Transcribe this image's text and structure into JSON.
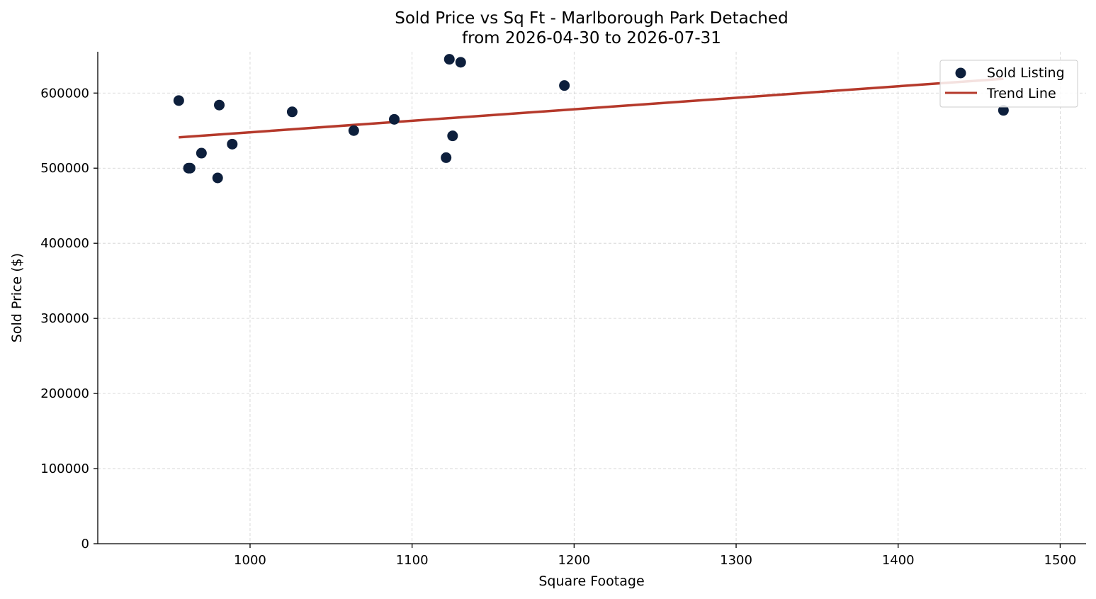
{
  "chart_data": {
    "type": "scatter",
    "title": "Sold Price vs Sq Ft - Marlborough Park Detached",
    "subtitle": "from 2026-04-30 to 2026-07-31",
    "xlabel": "Square Footage",
    "ylabel": "Sold Price ($)",
    "xlim": [
      906,
      1516
    ],
    "ylim": [
      0,
      655000
    ],
    "xticks": [
      1000,
      1100,
      1200,
      1300,
      1400,
      1500
    ],
    "yticks": [
      0,
      100000,
      200000,
      300000,
      400000,
      500000,
      600000
    ],
    "grid": true,
    "legend_position": "top-right",
    "series": [
      {
        "name": "Sold Listing",
        "kind": "scatter",
        "color": "#0d1f3c",
        "points": [
          {
            "x": 956,
            "y": 590000
          },
          {
            "x": 962,
            "y": 500000
          },
          {
            "x": 963,
            "y": 500000
          },
          {
            "x": 970,
            "y": 520000
          },
          {
            "x": 980,
            "y": 487000
          },
          {
            "x": 981,
            "y": 584000
          },
          {
            "x": 989,
            "y": 532000
          },
          {
            "x": 1026,
            "y": 575000
          },
          {
            "x": 1064,
            "y": 550000
          },
          {
            "x": 1089,
            "y": 565000
          },
          {
            "x": 1121,
            "y": 514000
          },
          {
            "x": 1123,
            "y": 645000
          },
          {
            "x": 1125,
            "y": 543000
          },
          {
            "x": 1130,
            "y": 641000
          },
          {
            "x": 1194,
            "y": 610000
          },
          {
            "x": 1465,
            "y": 577000
          }
        ]
      },
      {
        "name": "Trend Line",
        "kind": "line",
        "color": "#b5392b",
        "points": [
          {
            "x": 956,
            "y": 541000
          },
          {
            "x": 1465,
            "y": 619000
          }
        ]
      }
    ]
  }
}
